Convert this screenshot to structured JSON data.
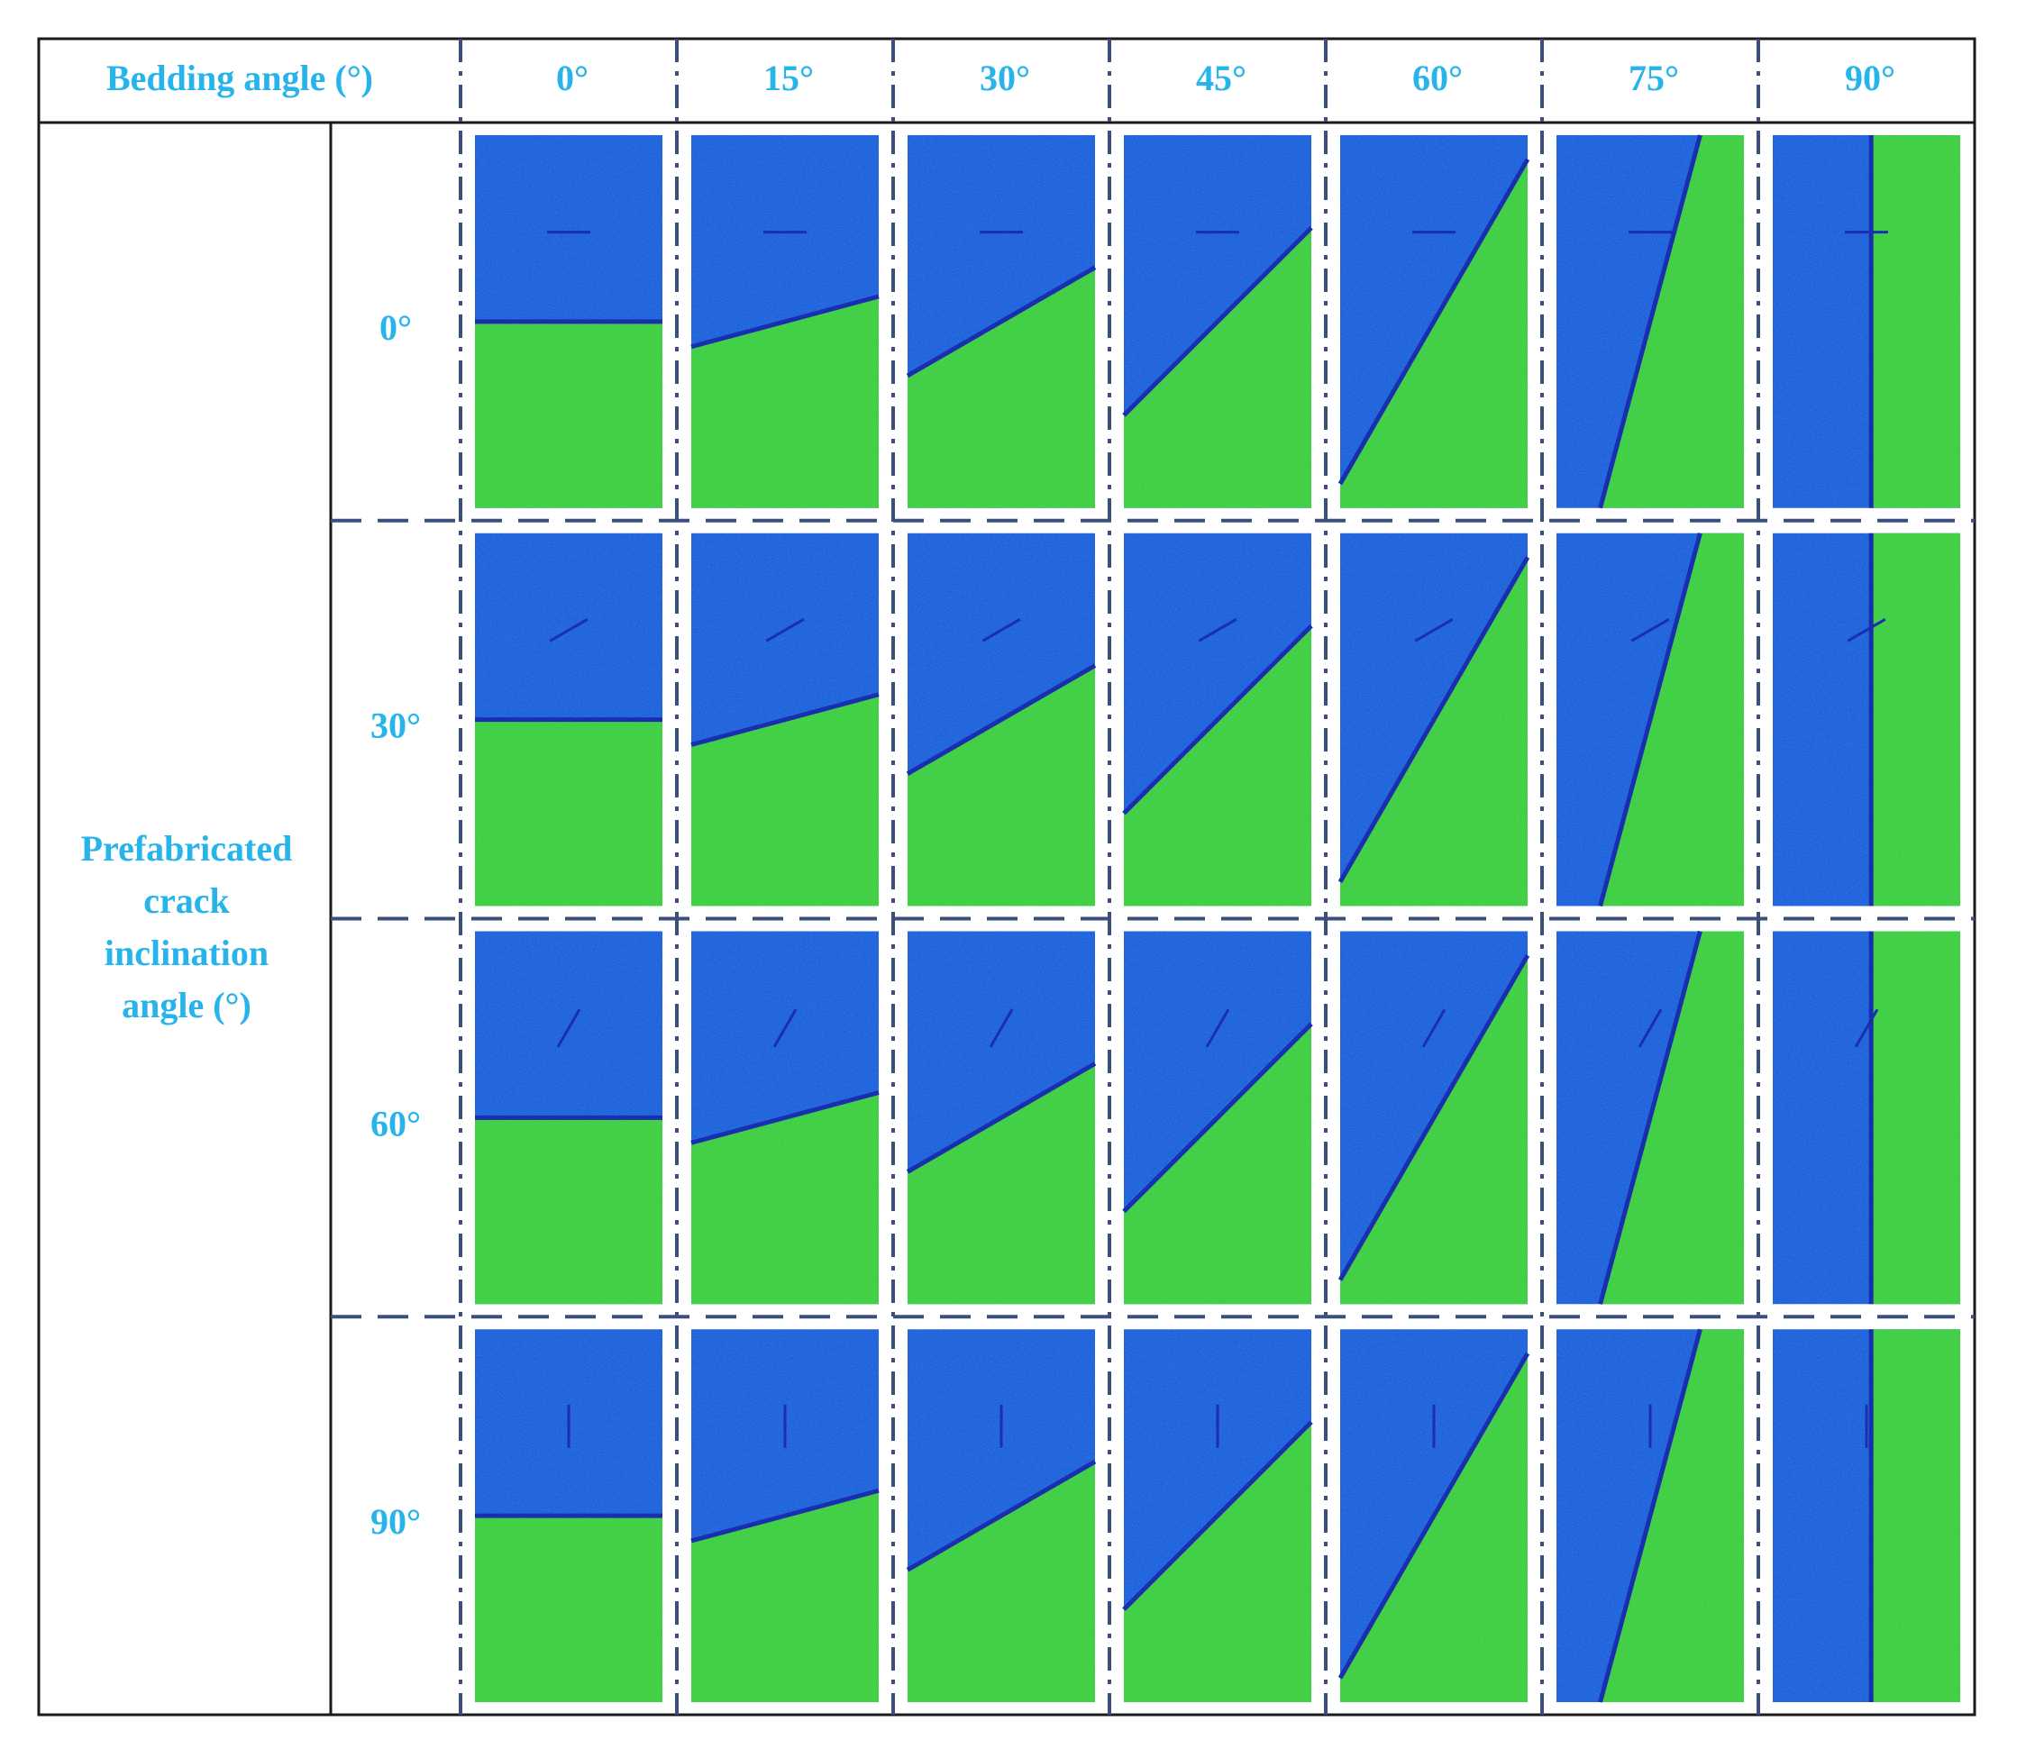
{
  "header": {
    "bedding_label": "Bedding angle (°)",
    "bedding_angles": [
      "0°",
      "15°",
      "30°",
      "45°",
      "60°",
      "75°",
      "90°"
    ]
  },
  "side": {
    "label_lines": [
      "Prefabricated",
      "crack",
      "inclination",
      "angle (°)"
    ],
    "crack_angles": [
      "0°",
      "30°",
      "60°",
      "90°"
    ]
  },
  "grid_data": {
    "bedding_angle_values": [
      0,
      15,
      30,
      45,
      60,
      75,
      90
    ],
    "crack_angle_values": [
      0,
      30,
      60,
      90
    ]
  },
  "colors": {
    "label_text": "#27b4ea",
    "frame": "#1a1a1a",
    "divider": "#3b4f7d",
    "matrix_blue": "#1f63df",
    "matrix_green": "#3fcf45",
    "bedding_line": "#1a2fb0",
    "crack_line": "#1a2fb0"
  }
}
